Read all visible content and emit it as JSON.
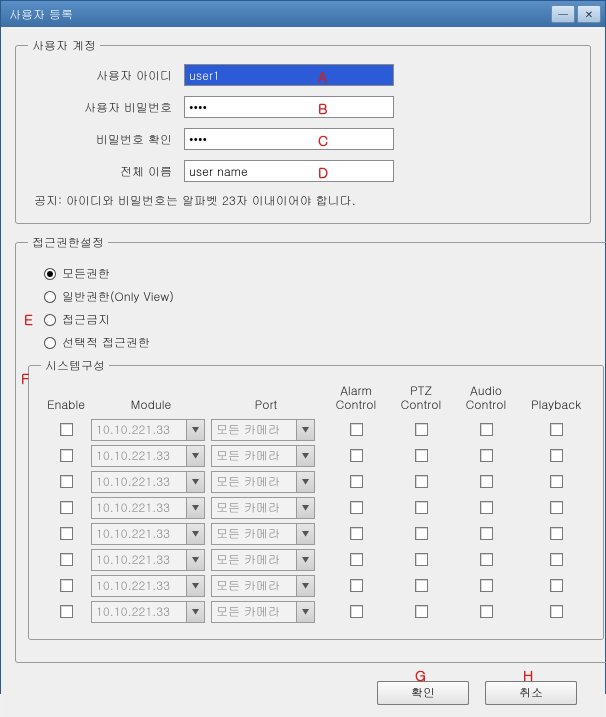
{
  "window": {
    "title": "사용자 등록"
  },
  "account": {
    "legend": "사용자 계정",
    "rows": [
      {
        "label": "사용자 아이디",
        "value": "user1",
        "selected": true,
        "annot": "A"
      },
      {
        "label": "사용자 비밀번호",
        "value": "••••",
        "selected": false,
        "annot": "B"
      },
      {
        "label": "비밀번호 확인",
        "value": "••••",
        "selected": false,
        "annot": "C"
      },
      {
        "label": "전체 이름",
        "value": "user name",
        "selected": false,
        "annot": "D"
      }
    ],
    "notice": "공지: 아이디와 비밀번호는 알파벳 23자 이내이어야 합니다."
  },
  "access": {
    "legend": "접근권한설정",
    "annot": "E",
    "options": [
      {
        "label": "모든권한",
        "checked": true
      },
      {
        "label": "일반권한(Only View)",
        "checked": false
      },
      {
        "label": "접근금지",
        "checked": false
      },
      {
        "label": "선택적 접근권한",
        "checked": false
      }
    ]
  },
  "system": {
    "legend": "시스템구성",
    "annot": "F",
    "headers": {
      "enable": "Enable",
      "module": "Module",
      "port": "Port",
      "alarm": "Alarm Control",
      "ptz": "PTZ Control",
      "audio": "Audio Control",
      "playback": "Playback"
    },
    "module_default": "10.10.221.33",
    "port_default": "모든 카메라",
    "row_count": 8
  },
  "buttons": {
    "ok": {
      "label": "확인",
      "annot": "G"
    },
    "cancel": {
      "label": "취소",
      "annot": "H"
    }
  },
  "colors": {
    "titlebar_start": "#5a8fc7",
    "titlebar_end": "#3b6fa5",
    "annot_color": "#d02020",
    "bg": "#efefef",
    "input_sel_bg": "#2b5bd7"
  }
}
